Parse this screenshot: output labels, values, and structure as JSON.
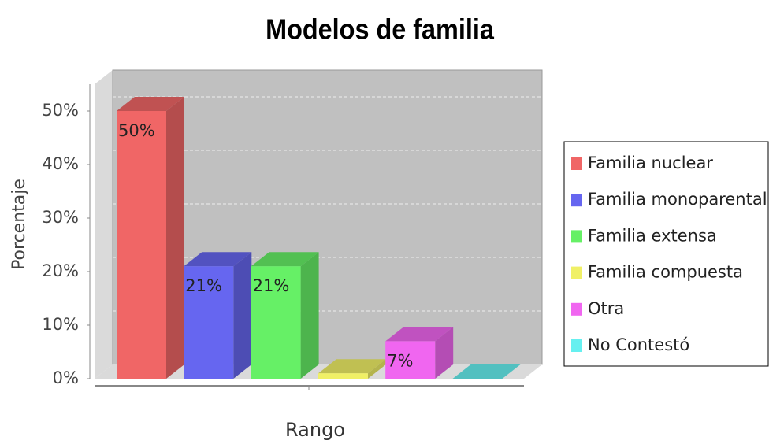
{
  "chart_data": {
    "type": "bar3d",
    "title": "Modelos de familia",
    "x_label": "Rango",
    "y_label": "Porcentaje",
    "categories": [
      null
    ],
    "series": [
      {
        "name": "Familia nuclear",
        "color": "#f06666",
        "values": [
          50
        ],
        "value_labels": [
          "50%"
        ]
      },
      {
        "name": "Familia monoparental",
        "color": "#6666f0",
        "values": [
          21
        ],
        "value_labels": [
          "21%"
        ]
      },
      {
        "name": "Familia extensa",
        "color": "#66f066",
        "values": [
          21
        ],
        "value_labels": [
          "21%"
        ]
      },
      {
        "name": "Familia compuesta",
        "color": "#f0f066",
        "values": [
          1
        ],
        "value_labels": [
          null
        ]
      },
      {
        "name": "Otra",
        "color": "#f066f0",
        "values": [
          7
        ],
        "value_labels": [
          "7%"
        ]
      },
      {
        "name": "No Contestó",
        "color": "#66f0f0",
        "values": [
          0
        ],
        "value_labels": [
          null
        ]
      }
    ],
    "ylim": [
      0,
      55
    ],
    "yticks": [
      {
        "value": 0,
        "label": "0%"
      },
      {
        "value": 10,
        "label": "10%"
      },
      {
        "value": 20,
        "label": "20%"
      },
      {
        "value": 30,
        "label": "30%"
      },
      {
        "value": 40,
        "label": "40%"
      },
      {
        "value": 50,
        "label": "50%"
      }
    ],
    "grid": true,
    "legend": "right"
  }
}
